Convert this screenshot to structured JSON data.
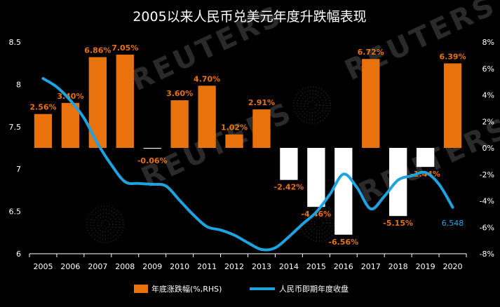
{
  "chart_data": {
    "type": "bar+line",
    "title": "2005以来人民币兑美元年度升跌幅表现",
    "categories": [
      "2005",
      "2006",
      "2007",
      "2008",
      "2009",
      "2010",
      "2011",
      "2012",
      "2013",
      "2014",
      "2015",
      "2016",
      "2017",
      "2018",
      "2019",
      "2020"
    ],
    "series": [
      {
        "name": "年底涨跌幅(%,RHS)",
        "type": "bar",
        "axis": "right",
        "values": [
          2.56,
          3.4,
          6.86,
          7.05,
          -0.06,
          3.6,
          4.7,
          1.02,
          2.91,
          -2.42,
          -4.46,
          -6.56,
          6.72,
          -5.15,
          -1.44,
          6.39
        ],
        "labels": [
          "2.56%",
          "3.40%",
          "6.86%",
          "7.05%",
          "-0.06%",
          "3.60%",
          "4.70%",
          "1.02%",
          "2.91%",
          "-2.42%",
          "-4.46%",
          "-6.56%",
          "6.72%",
          "-5.15%",
          "-1.44%",
          "6.39%"
        ],
        "positive_color": "#e8720c",
        "negative_color": "#ffffff"
      },
      {
        "name": "人民币即期年度收盘",
        "type": "line",
        "axis": "left",
        "color": "#1fa3e0",
        "x": [
          2005.0,
          2005.5,
          2006.0,
          2006.5,
          2007.0,
          2007.5,
          2008.0,
          2008.5,
          2009.0,
          2009.5,
          2010.0,
          2010.5,
          2011.0,
          2011.5,
          2012.0,
          2012.5,
          2013.0,
          2013.5,
          2014.0,
          2014.5,
          2015.0,
          2015.5,
          2016.0,
          2016.5,
          2017.0,
          2017.5,
          2018.0,
          2018.5,
          2019.0,
          2019.5,
          2020.0
        ],
        "values": [
          8.07,
          7.97,
          7.81,
          7.6,
          7.3,
          7.05,
          6.85,
          6.83,
          6.82,
          6.8,
          6.63,
          6.46,
          6.32,
          6.28,
          6.22,
          6.13,
          6.05,
          6.07,
          6.2,
          6.35,
          6.49,
          6.7,
          6.94,
          6.78,
          6.53,
          6.68,
          6.87,
          6.92,
          6.96,
          6.82,
          6.548
        ],
        "end_label": "6.548"
      }
    ],
    "y_left": {
      "min": 6,
      "max": 8.5,
      "ticks": [
        "6",
        "6.5",
        "7",
        "7.5",
        "8",
        "8.5"
      ]
    },
    "y_right": {
      "min": -8,
      "max": 8,
      "ticks": [
        "-8%",
        "-6%",
        "-4%",
        "-2%",
        "0%",
        "2%",
        "4%",
        "6%",
        "8%"
      ]
    },
    "legend": {
      "placement": "bottom-center"
    },
    "grid": false
  },
  "watermark": "REUTERS",
  "colors": {
    "background": "#000000",
    "text": "#ffffff"
  }
}
